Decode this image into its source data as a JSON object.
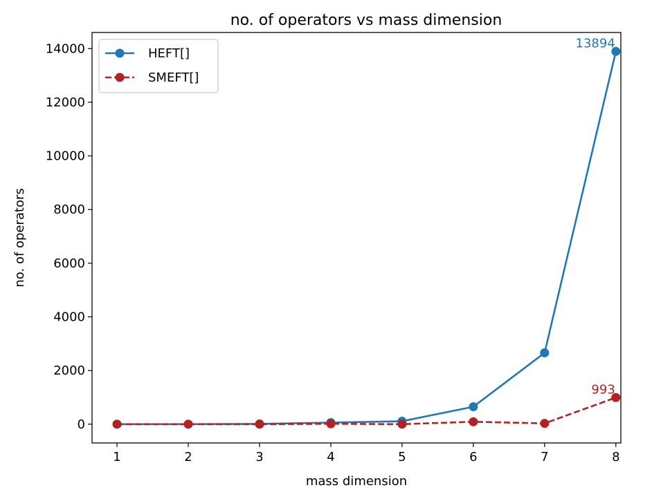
{
  "chart_data": {
    "type": "line",
    "title": "no. of operators vs mass dimension",
    "xlabel": "mass dimension",
    "ylabel": "no. of operators",
    "x": [
      1,
      2,
      3,
      4,
      5,
      6,
      7,
      8
    ],
    "xticks": [
      "1",
      "2",
      "3",
      "4",
      "5",
      "6",
      "7",
      "8"
    ],
    "yticks": [
      "0",
      "2000",
      "4000",
      "6000",
      "8000",
      "10000",
      "12000",
      "14000"
    ],
    "xlim": [
      0.65,
      8.07
    ],
    "ylim": [
      -700,
      14600
    ],
    "grid": false,
    "legend_position": "top-left",
    "series": [
      {
        "name": "HEFT[]",
        "color": "#1f77b4",
        "line_style": "solid",
        "marker": "circle",
        "values": [
          0,
          0,
          10,
          60,
          110,
          650,
          2660,
          13894
        ],
        "end_label": "13894"
      },
      {
        "name": "SMEFT[]",
        "color": "#b22222",
        "line_style": "dashed",
        "marker": "circle",
        "values": [
          0,
          0,
          0,
          15,
          0,
          90,
          30,
          993
        ],
        "end_label": "993"
      }
    ]
  }
}
